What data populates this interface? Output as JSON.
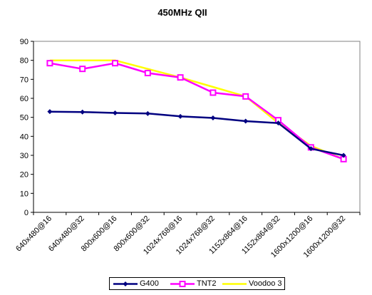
{
  "chart_data": {
    "type": "line",
    "title": "450MHz QII",
    "xlabel": "",
    "ylabel": "",
    "categories": [
      "640x480@16",
      "640x480@32",
      "800x600@16",
      "800x600@32",
      "1024x768@16",
      "1024x768@32",
      "1152x864@16",
      "1152x864@32",
      "1600x1200@16",
      "1600x1200@32"
    ],
    "ylim": [
      0,
      90
    ],
    "yticks": [
      0,
      10,
      20,
      30,
      40,
      50,
      60,
      70,
      80,
      90
    ],
    "grid": false,
    "legend_position": "bottom",
    "series": [
      {
        "name": "G400",
        "color": "#000080",
        "marker": "diamond",
        "values": [
          53,
          52.8,
          52.3,
          52,
          50.5,
          49.7,
          48,
          47,
          33.5,
          30
        ]
      },
      {
        "name": "TNT2",
        "color": "#ff00ff",
        "marker": "square",
        "values": [
          78.5,
          75.5,
          78.5,
          73.3,
          71,
          63,
          61,
          48.5,
          34.2,
          28
        ]
      },
      {
        "name": "Voodoo 3",
        "color": "#ffff00",
        "marker": "none",
        "values": [
          80,
          80,
          80,
          75.5,
          71,
          66,
          61,
          47,
          35,
          28
        ]
      }
    ]
  }
}
